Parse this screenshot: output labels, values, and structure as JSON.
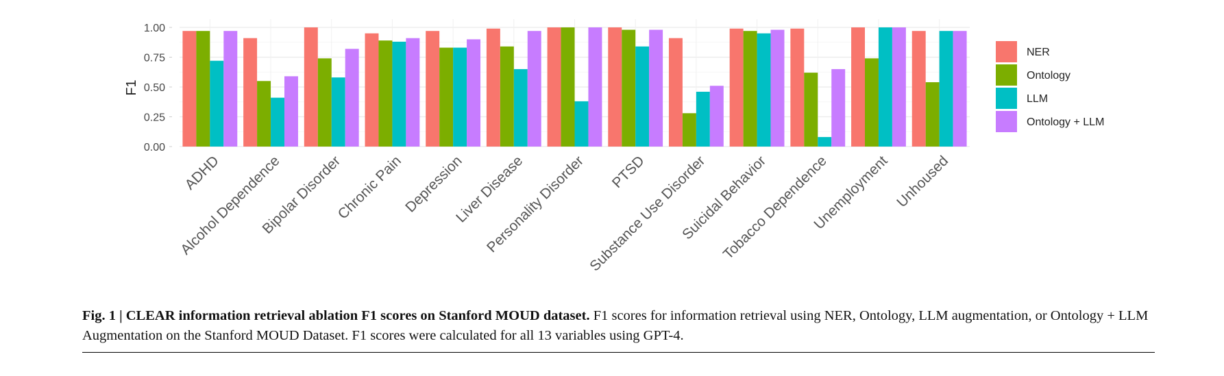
{
  "chart_data": {
    "type": "bar",
    "ylabel": "F1",
    "xlabel": "",
    "ylim": [
      0,
      1.05
    ],
    "yticks": [
      "0.00",
      "0.25",
      "0.50",
      "0.75",
      "1.00"
    ],
    "grid": true,
    "legend_position": "right",
    "categories": [
      "ADHD",
      "Alcohol Dependence",
      "Bipolar Disorder",
      "Chronic Pain",
      "Depression",
      "Liver Disease",
      "Personality Disorder",
      "PTSD",
      "Substance Use Disorder",
      "Suicidal Behavior",
      "Tobacco Dependence",
      "Unemployment",
      "Unhoused"
    ],
    "series": [
      {
        "name": "NER",
        "color": "#F8766D",
        "values": [
          0.97,
          0.91,
          1.0,
          0.95,
          0.97,
          0.99,
          1.0,
          1.0,
          0.91,
          0.99,
          0.99,
          1.0,
          0.97
        ]
      },
      {
        "name": "Ontology",
        "color": "#7CAE00",
        "values": [
          0.97,
          0.55,
          0.74,
          0.89,
          0.83,
          0.84,
          1.0,
          0.98,
          0.28,
          0.97,
          0.62,
          0.74,
          0.54
        ]
      },
      {
        "name": "LLM",
        "color": "#00BFC4",
        "values": [
          0.72,
          0.41,
          0.58,
          0.88,
          0.83,
          0.65,
          0.38,
          0.84,
          0.46,
          0.95,
          0.08,
          1.0,
          0.97
        ]
      },
      {
        "name": "Ontology + LLM",
        "color": "#C77CFF",
        "values": [
          0.97,
          0.59,
          0.82,
          0.91,
          0.9,
          0.97,
          1.0,
          0.98,
          0.51,
          0.98,
          0.65,
          1.0,
          0.97
        ]
      }
    ]
  },
  "caption": {
    "bold": "Fig. 1 | CLEAR information retrieval ablation F1 scores on Stanford MOUD dataset.",
    "text": " F1 scores for information retrieval using NER, Ontology, LLM augmentation, or Ontology + LLM Augmentation on the Stanford MOUD Dataset. F1 scores were calculated for all 13 variables using GPT-4."
  }
}
